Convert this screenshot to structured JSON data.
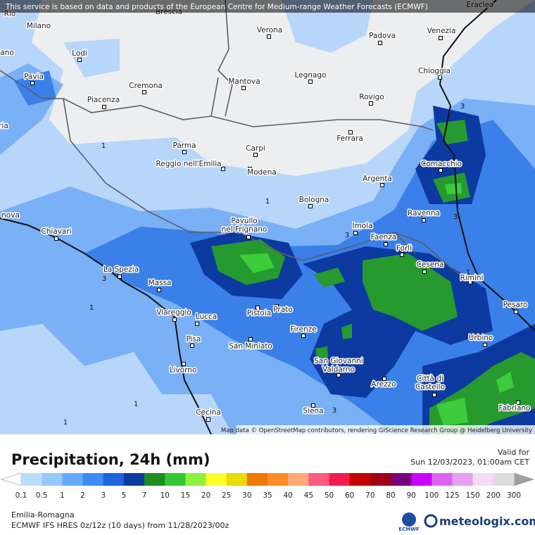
{
  "header": {
    "notice": "This service is based on data and products of the European Centre for Medium-range Weather Forecasts (ECMWF)"
  },
  "map": {
    "attribution": "Map data © OpenStreetMap contributors, rendering GIScience Research Group @ Heidelberg University",
    "cities": [
      "Milano",
      "Verona",
      "Padova",
      "Venezia",
      "Lodi",
      "Pavia",
      "Cremona",
      "Mantova",
      "Legnago",
      "Rovigo",
      "Chioggia",
      "Piacenza",
      "Parma",
      "Carpi",
      "Ferrara",
      "Reggio nell'Emilia",
      "Modena",
      "Comacchio",
      "Argenta",
      "Bologna",
      "Ravenna",
      [
        "Pavullo",
        "nel Frignano"
      ],
      "Imola",
      "Faenza",
      "Forlì",
      "Chiavari",
      "La Spezia",
      "Cesena",
      "Rimini",
      "Massa",
      "Viareggio",
      "Lucca",
      "Pistoia",
      "Prato",
      "Firenze",
      "Pesaro",
      "Pisa",
      "San Miniato",
      "Urbino",
      [
        "San Giovanni",
        "Valdarno"
      ],
      "Livorno",
      "Arezzo",
      [
        "Città di",
        "Castello"
      ],
      "Cecina",
      "Siena",
      "Fabriano",
      "Rio",
      "Brescia",
      "ano",
      "ria",
      "nova",
      "Eraclea"
    ],
    "contour_labels": [
      1,
      1,
      1,
      1,
      1,
      1,
      3,
      3,
      3,
      3,
      3
    ]
  },
  "legend": {
    "title": "Precipitation, 24h (mm)",
    "valid_label": "Valid for",
    "valid_time": "Sun 12/03/2023, 01:00am CET",
    "values": [
      0.1,
      0.5,
      1,
      2,
      3,
      5,
      7,
      10,
      15,
      20,
      25,
      30,
      35,
      40,
      45,
      50,
      60,
      70,
      80,
      90,
      100,
      125,
      150,
      200,
      300
    ],
    "colors": [
      "#bcdcff",
      "#96c8ff",
      "#64aaff",
      "#3c8cf5",
      "#1e64dc",
      "#0a3c9c",
      "#1e8c1e",
      "#32c832",
      "#8cf03c",
      "#ffff28",
      "#e6dc00",
      "#f07800",
      "#ff8c28",
      "#ffaa78",
      "#ff5a82",
      "#f01e50",
      "#c80000",
      "#a00014",
      "#78007f",
      "#c800ff",
      "#dc64f0",
      "#e6a0f0",
      "#f5dcf5",
      "#dcdcdc"
    ],
    "under_color": "#ffffff",
    "over_color": "#a0a0a0"
  },
  "footer": {
    "region": "Emilia-Romagna",
    "model": "ECMWF IFS HRES 0z/12z (10 days) from  11/28/2023/00z",
    "ecmwf": "ECMWF",
    "brand": "meteologix.com"
  }
}
